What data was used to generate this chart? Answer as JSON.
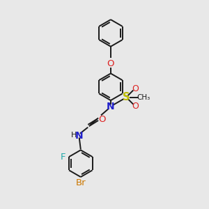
{
  "background_color": "#e8e8e8",
  "bond_color": "#1a1a1a",
  "colors": {
    "N": "#2222cc",
    "O": "#dd2222",
    "S": "#bbbb00",
    "F": "#22aaaa",
    "Br": "#cc7700",
    "C": "#1a1a1a",
    "H": "#1a1a1a"
  },
  "lw": 1.4,
  "figsize": [
    3.0,
    3.0
  ],
  "dpi": 100
}
